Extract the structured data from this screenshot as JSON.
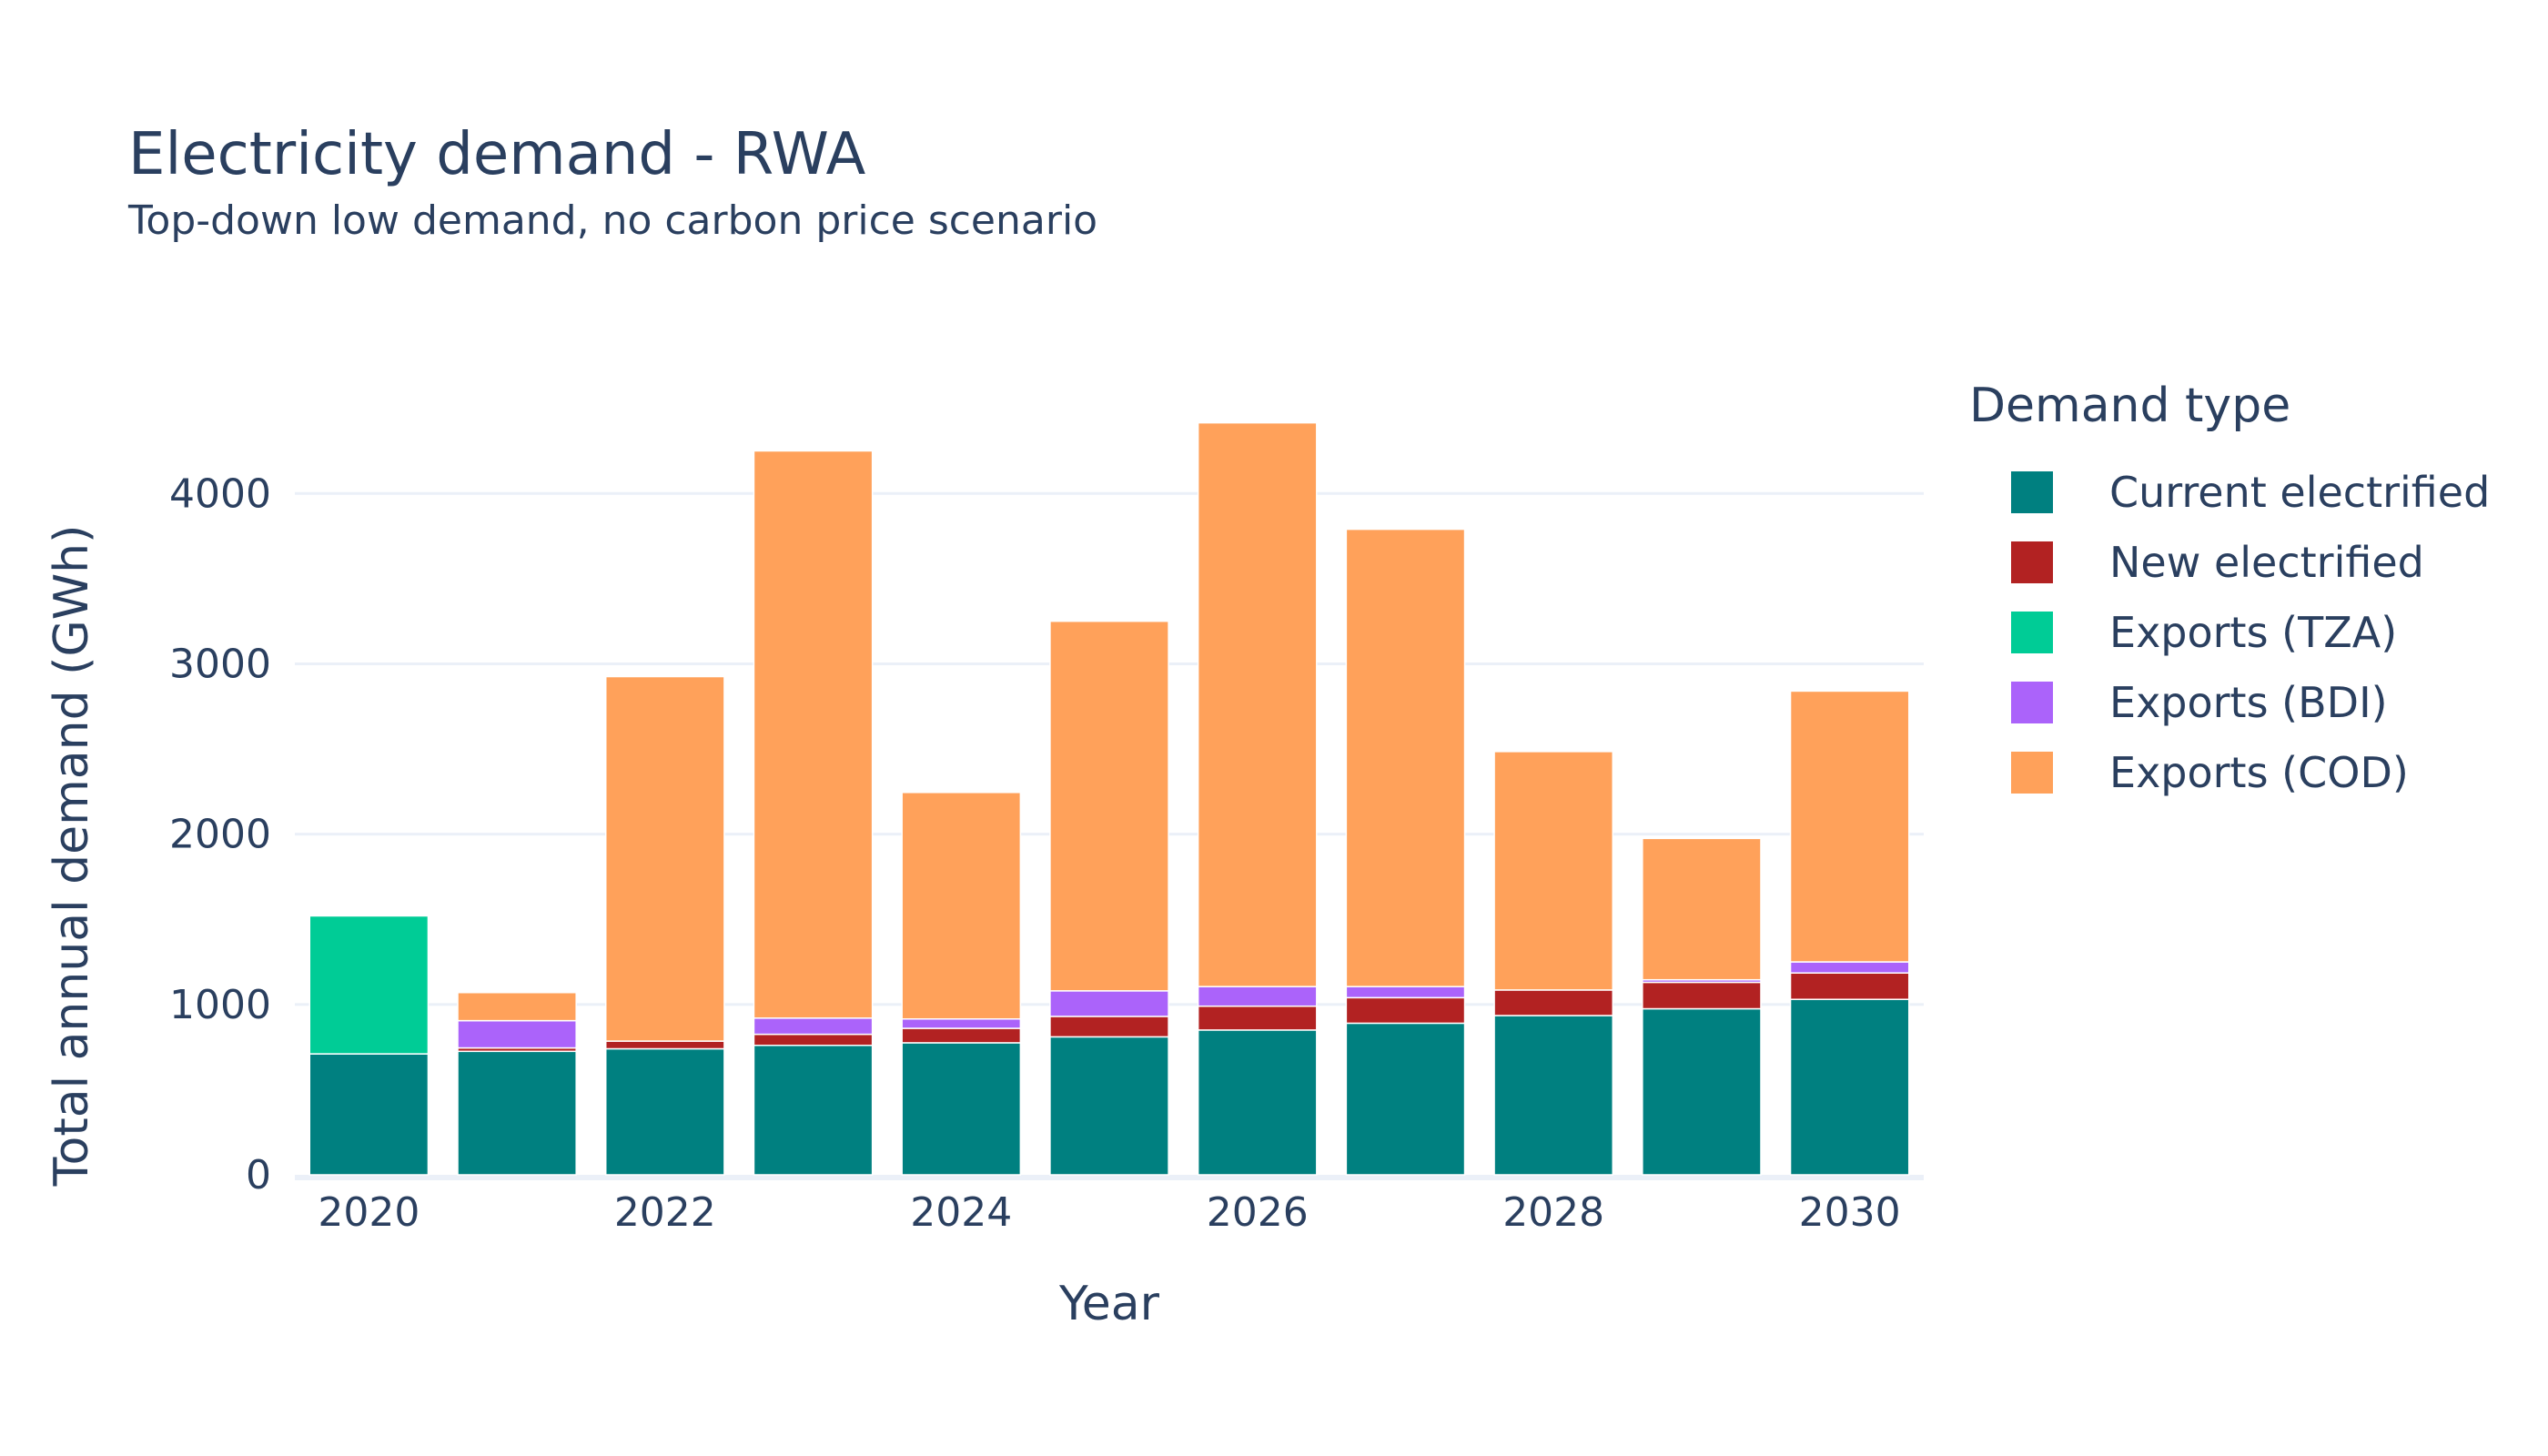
{
  "chart_data": {
    "type": "bar",
    "stacked": true,
    "title": "Electricity demand - RWA",
    "subtitle": "Top-down low demand, no carbon price scenario",
    "xlabel": "Year",
    "ylabel": "Total annual demand (GWh)",
    "ylim": [
      0,
      4600
    ],
    "yticks": [
      0,
      1000,
      2000,
      3000,
      4000
    ],
    "xticks": [
      2020,
      2022,
      2024,
      2026,
      2028,
      2030
    ],
    "grid": true,
    "legend_title": "Demand type",
    "legend_position": "right",
    "categories": [
      2020,
      2021,
      2022,
      2023,
      2024,
      2025,
      2026,
      2027,
      2028,
      2029,
      2030
    ],
    "series": [
      {
        "name": "Current electrified",
        "color": "#008080",
        "values": [
          710,
          725,
          740,
          760,
          775,
          810,
          850,
          890,
          935,
          975,
          1030
        ]
      },
      {
        "name": "New electrified",
        "color": "#b22222",
        "values": [
          0,
          20,
          45,
          65,
          85,
          120,
          140,
          150,
          150,
          155,
          155
        ]
      },
      {
        "name": "Exports (TZA)",
        "color": "#00cc96",
        "values": [
          810,
          0,
          0,
          0,
          0,
          0,
          0,
          0,
          0,
          0,
          0
        ]
      },
      {
        "name": "Exports (BDI)",
        "color": "#ab63fa",
        "values": [
          0,
          160,
          0,
          95,
          55,
          150,
          115,
          65,
          0,
          15,
          65
        ]
      },
      {
        "name": "Exports (COD)",
        "color": "#ffa15a",
        "values": [
          0,
          165,
          2140,
          3330,
          1330,
          2170,
          3310,
          2685,
          1400,
          830,
          1590
        ]
      }
    ]
  }
}
